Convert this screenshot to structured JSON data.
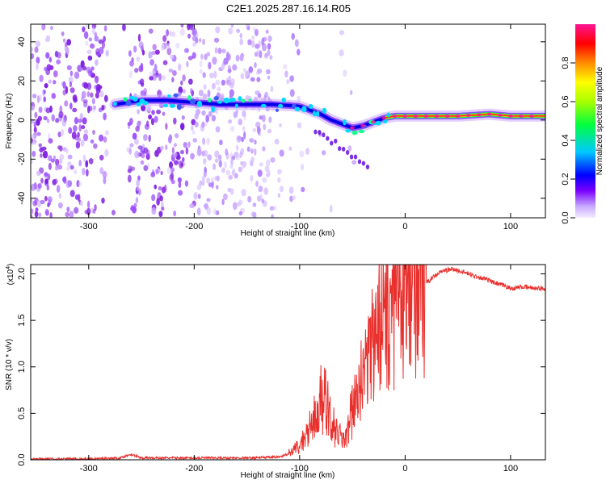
{
  "title": "C2E1.2025.287.16.14.R05",
  "chart_data": [
    {
      "type": "heatmap",
      "xlabel": "Height of straight line (km)",
      "ylabel": "Frequency (Hz)",
      "xlim": [
        -355,
        133
      ],
      "ylim": [
        -50,
        49
      ],
      "xticks": [
        -300,
        -200,
        -100,
        0,
        100
      ],
      "xtick_labels": [
        "-300",
        "-200",
        "-100",
        "0",
        "100"
      ],
      "yticks": [
        -40,
        -20,
        0,
        20,
        40
      ],
      "ytick_labels": [
        "-40",
        "-20",
        "0",
        "20",
        "40"
      ],
      "colorbar": {
        "label": "Normalized spectral amplitude",
        "range": [
          0,
          1
        ],
        "ticks": [
          0.0,
          0.2,
          0.4,
          0.6,
          0.8
        ],
        "tick_labels": [
          "0.0",
          "0.2",
          "0.4",
          "0.6",
          "0.8"
        ]
      },
      "signal_track": {
        "x": [
          -275,
          -250,
          -225,
          -200,
          -175,
          -150,
          -125,
          -100,
          -90,
          -80,
          -70,
          -60,
          -50,
          -40,
          -30,
          -20,
          -10,
          0,
          20,
          50,
          80,
          100,
          133
        ],
        "freq": [
          8,
          10,
          10,
          9,
          8,
          8,
          8,
          7,
          5,
          3,
          0,
          -2,
          -4,
          -3,
          -1,
          1,
          2,
          2,
          2,
          2,
          3,
          2,
          2
        ],
        "amplitude": [
          0.35,
          0.35,
          0.35,
          0.3,
          0.3,
          0.3,
          0.35,
          0.4,
          0.4,
          0.35,
          0.35,
          0.45,
          0.5,
          0.55,
          0.6,
          0.7,
          0.75,
          0.8,
          0.8,
          0.85,
          0.85,
          0.85,
          0.85
        ]
      }
    },
    {
      "type": "line",
      "xlabel": "Height of straight line (km)",
      "ylabel": "SNR (10 * v/v)",
      "scale_label": "(x10",
      "scale_exponent": "4",
      "scale_close": ")",
      "xlim": [
        -355,
        133
      ],
      "ylim": [
        0,
        2.1
      ],
      "xticks": [
        -300,
        -200,
        -100,
        0,
        100
      ],
      "xtick_labels": [
        "-300",
        "-200",
        "-100",
        "0",
        "100"
      ],
      "yticks": [
        0.0,
        0.5,
        1.0,
        1.5,
        2.0
      ],
      "ytick_labels": [
        "0.0",
        "0.5",
        "1.0",
        "1.5",
        "2.0"
      ],
      "color": "#e8302d",
      "series": [
        {
          "name": "SNR",
          "x": [
            -355,
            -300,
            -270,
            -260,
            -250,
            -200,
            -150,
            -120,
            -105,
            -95,
            -85,
            -78,
            -72,
            -66,
            -60,
            -55,
            -48,
            -40,
            -32,
            -25,
            -18,
            -12,
            -5,
            0,
            8,
            15,
            25,
            35,
            45,
            55,
            65,
            75,
            85,
            95,
            100,
            110,
            120,
            133
          ],
          "y": [
            0.01,
            0.01,
            0.02,
            0.06,
            0.02,
            0.02,
            0.02,
            0.03,
            0.08,
            0.2,
            0.4,
            0.6,
            0.45,
            0.25,
            0.2,
            0.3,
            0.5,
            0.8,
            1.05,
            1.25,
            1.35,
            1.5,
            1.55,
            1.6,
            1.75,
            1.85,
            1.95,
            2.03,
            2.05,
            2.02,
            1.98,
            1.95,
            1.9,
            1.87,
            1.84,
            1.86,
            1.85,
            1.84
          ]
        }
      ]
    }
  ]
}
